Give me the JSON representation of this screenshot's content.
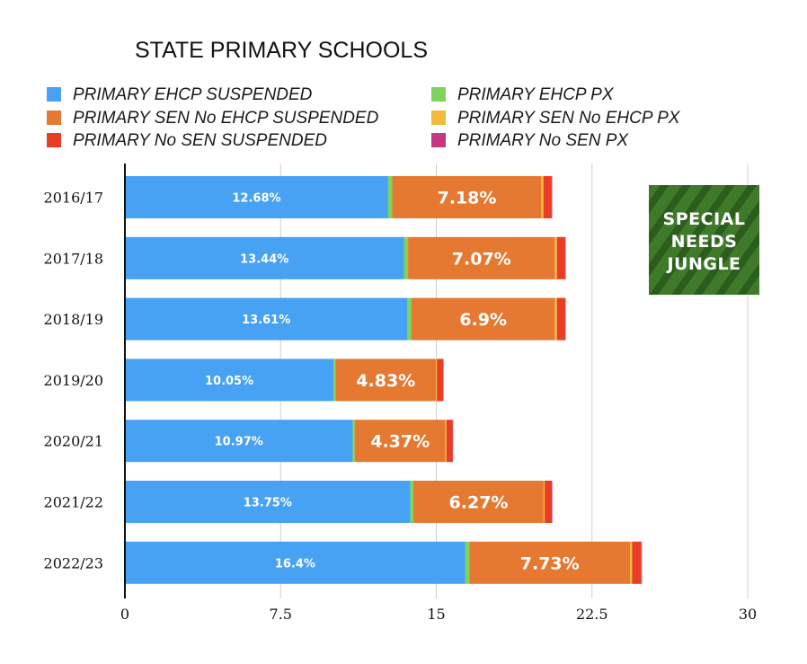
{
  "chart_data": {
    "type": "bar",
    "orientation": "horizontal",
    "stacked": true,
    "title": "STATE PRIMARY SCHOOLS",
    "categories": [
      "2016/17",
      "2017/18",
      "2018/19",
      "2019/20",
      "2020/21",
      "2021/22",
      "2022/23"
    ],
    "series": [
      {
        "name": "PRIMARY EHCP SUSPENDED",
        "color": "#47a2f3",
        "values": [
          12.68,
          13.44,
          13.61,
          10.05,
          10.97,
          13.75,
          16.4
        ],
        "labels": [
          "12.68%",
          "13.44%",
          "13.61%",
          "10.05%",
          "10.97%",
          "13.75%",
          "16.4%"
        ]
      },
      {
        "name": "PRIMARY  EHCP PX",
        "color": "#7ed35a",
        "values": [
          0.2,
          0.2,
          0.2,
          0.1,
          0.1,
          0.15,
          0.2
        ]
      },
      {
        "name": "PRIMARY  SEN No EHCP SUSPENDED",
        "color": "#e57932",
        "values": [
          7.18,
          7.07,
          6.9,
          4.83,
          4.37,
          6.27,
          7.73
        ],
        "labels": [
          "7.18%",
          "7.07%",
          "6.9%",
          "4.83%",
          "4.37%",
          "6.27%",
          "7.73%"
        ]
      },
      {
        "name": "PRIMARY  SEN No EHCP  PX",
        "color": "#f2bb3a",
        "values": [
          0.1,
          0.1,
          0.1,
          0.05,
          0.05,
          0.05,
          0.1
        ]
      },
      {
        "name": "PRIMARY  No SEN SUSPENDED",
        "color": "#ea3d25",
        "values": [
          0.4,
          0.4,
          0.4,
          0.3,
          0.3,
          0.35,
          0.45
        ]
      },
      {
        "name": "PRIMARY No SEN PX",
        "color": "#c73781",
        "values": [
          0.02,
          0.02,
          0.02,
          0.01,
          0.01,
          0.01,
          0.02
        ]
      }
    ],
    "xlim": [
      0,
      30
    ],
    "xticks": [
      0,
      7.5,
      15,
      22.5,
      30
    ],
    "xtick_labels": [
      "0",
      "7.5",
      "15",
      "22.5",
      "30"
    ],
    "grid": true,
    "legend_position": "top"
  },
  "logo": {
    "lines": [
      "SPECIAL",
      "NEEDS",
      "JUNGLE"
    ],
    "background_color": "#3f7a2a"
  }
}
